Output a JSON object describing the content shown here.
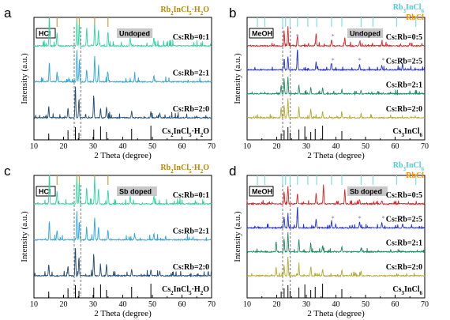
{
  "chart_data": [
    {
      "panel": "a",
      "type": "line",
      "xlabel": "2 Theta (degree)",
      "ylabel": "Intensity (a.u.)",
      "xlim": [
        10,
        70
      ],
      "xticks": [
        10,
        20,
        30,
        40,
        50,
        60,
        70
      ],
      "grid": false,
      "solvent_tag": "HCl",
      "condition_tag": "Undoped",
      "legend": [
        {
          "label": "Rb2InCl5·H2O",
          "color": "#b8860b"
        }
      ],
      "ref_top": {
        "color": "#c8a040",
        "x": [
          15.2,
          17.8,
          24.5,
          25.3,
          30.5,
          35.0
        ]
      },
      "series": [
        {
          "name": "Cs:Rb=0:1",
          "color": "#2fd5a0",
          "peaks": [
            [
              15.2,
              0.9
            ],
            [
              17.8,
              0.4
            ],
            [
              24.5,
              0.8
            ],
            [
              25.3,
              0.7
            ],
            [
              27.8,
              0.5
            ],
            [
              30.5,
              0.7
            ],
            [
              31.8,
              0.5
            ],
            [
              35.0,
              0.45
            ],
            [
              42.5,
              0.25
            ],
            [
              50.5,
              0.25
            ]
          ]
        },
        {
          "name": "Cs:Rb=2:1",
          "color": "#29a8e0",
          "peaks": [
            [
              15.2,
              0.6
            ],
            [
              17.8,
              0.3
            ],
            [
              24.5,
              1.0
            ],
            [
              25.3,
              0.6
            ],
            [
              27.8,
              0.4
            ],
            [
              30.5,
              0.8
            ],
            [
              31.8,
              0.4
            ],
            [
              35.0,
              0.3
            ],
            [
              44.0,
              0.2
            ],
            [
              50.5,
              0.2
            ]
          ]
        },
        {
          "name": "Cs:Rb=2:0",
          "color": "#1f4a6e",
          "peaks": [
            [
              15.0,
              0.35
            ],
            [
              21.5,
              0.3
            ],
            [
              24.0,
              1.0
            ],
            [
              25.2,
              0.6
            ],
            [
              30.2,
              0.7
            ],
            [
              32.5,
              0.3
            ],
            [
              34.5,
              0.35
            ],
            [
              43.0,
              0.2
            ],
            [
              49.5,
              0.2
            ],
            [
              52.5,
              0.15
            ]
          ]
        }
      ],
      "ref_bottom": {
        "name": "Cs2InCl5·H2O",
        "color": "#000000",
        "x": [
          15.0,
          21.5,
          24.0,
          25.2,
          30.2,
          32.5,
          34.5,
          43.0,
          49.5
        ]
      }
    },
    {
      "panel": "b",
      "type": "line",
      "xlabel": "2 Theta (degree)",
      "ylabel": "Intensity (a.u.)",
      "xlim": [
        10,
        70
      ],
      "xticks": [
        10,
        20,
        30,
        40,
        50,
        60,
        70
      ],
      "grid": false,
      "solvent_tag": "MeOH",
      "condition_tag": "Undoped",
      "legend": [
        {
          "label": "Rb3InCl6",
          "color": "#3fd4d4"
        },
        {
          "label": "RbCl",
          "color": "#ff8c00"
        }
      ],
      "ref_top": {
        "color": "#7fe0e0",
        "x": [
          13.5,
          16.0,
          22.0,
          23.0,
          24.5,
          27.0,
          30.5,
          33.5,
          38.5,
          42.0,
          48.5,
          52.5,
          60.5,
          67.0
        ]
      },
      "series": [
        {
          "name": "Cs:Rb=0:5",
          "color": "#e02020",
          "peaks": [
            [
              22.5,
              0.7
            ],
            [
              23.8,
              0.9
            ],
            [
              27.0,
              0.5
            ],
            [
              33.3,
              0.6
            ],
            [
              38.5,
              0.3
            ],
            [
              43.0,
              0.4
            ],
            [
              48.0,
              0.2
            ],
            [
              55.5,
              0.15
            ],
            [
              65.0,
              0.15
            ]
          ],
          "markers": [
            27.0,
            39.0,
            48.0
          ]
        },
        {
          "name": "Cs:Rb=2:5",
          "color": "#2030d0",
          "peaks": [
            [
              22.5,
              0.5
            ],
            [
              23.8,
              0.6
            ],
            [
              27.0,
              1.0
            ],
            [
              33.3,
              0.4
            ],
            [
              38.5,
              0.3
            ],
            [
              48.0,
              0.25
            ],
            [
              55.5,
              0.2
            ],
            [
              62.5,
              0.3
            ]
          ],
          "markers": [
            27.0,
            39.0,
            48.0,
            56.0,
            62.5
          ]
        },
        {
          "name": "Cs:Rb=2:1",
          "color": "#1e8a60",
          "peaks": [
            [
              21.5,
              0.4
            ],
            [
              22.5,
              0.7
            ],
            [
              23.8,
              0.8
            ],
            [
              27.5,
              0.4
            ],
            [
              31.5,
              0.3
            ],
            [
              35.5,
              0.3
            ],
            [
              42.0,
              0.2
            ],
            [
              48.5,
              0.15
            ]
          ]
        },
        {
          "name": "Cs:Rb=2:0",
          "color": "#b5a830",
          "peaks": [
            [
              21.5,
              0.5
            ],
            [
              22.5,
              0.6
            ],
            [
              23.8,
              0.9
            ],
            [
              27.5,
              0.5
            ],
            [
              31.5,
              0.4
            ],
            [
              35.5,
              0.3
            ],
            [
              42.0,
              0.25
            ],
            [
              48.5,
              0.2
            ]
          ]
        }
      ],
      "ref_bottom": {
        "name": "Cs3InCl6",
        "color": "#000000",
        "x": [
          21.5,
          22.5,
          23.8,
          24.5,
          27.5,
          29.5,
          31.5,
          33.0,
          35.5,
          42.0
        ]
      }
    },
    {
      "panel": "c",
      "type": "line",
      "xlabel": "2 Theta (degree)",
      "ylabel": "Intensity (a.u.)",
      "xlim": [
        10,
        70
      ],
      "xticks": [
        10,
        20,
        30,
        40,
        50,
        60,
        70
      ],
      "grid": false,
      "solvent_tag": "HCl",
      "condition_tag": "Sb doped",
      "legend": [
        {
          "label": "Rb2InCl5·H2O",
          "color": "#b8860b"
        }
      ],
      "ref_top": {
        "color": "#c8a040",
        "x": [
          15.2,
          17.8,
          24.5,
          25.3,
          30.5,
          35.0
        ]
      },
      "series": [
        {
          "name": "Cs:Rb=0:1",
          "color": "#2fd5a0",
          "peaks": [
            [
              15.2,
              0.9
            ],
            [
              17.8,
              0.4
            ],
            [
              24.5,
              0.8
            ],
            [
              25.3,
              0.7
            ],
            [
              27.8,
              0.5
            ],
            [
              30.5,
              0.8
            ],
            [
              31.8,
              0.5
            ],
            [
              35.0,
              0.45
            ],
            [
              42.5,
              0.25
            ],
            [
              50.5,
              0.25
            ]
          ]
        },
        {
          "name": "Cs:Rb=2:1",
          "color": "#29a8e0",
          "peaks": [
            [
              15.2,
              0.6
            ],
            [
              17.8,
              0.3
            ],
            [
              24.5,
              0.9
            ],
            [
              25.3,
              0.6
            ],
            [
              27.8,
              0.4
            ],
            [
              30.5,
              0.7
            ],
            [
              31.8,
              0.4
            ],
            [
              35.0,
              0.3
            ],
            [
              44.0,
              0.2
            ],
            [
              50.5,
              0.2
            ]
          ]
        },
        {
          "name": "Cs:Rb=2:0",
          "color": "#1f4a6e",
          "peaks": [
            [
              15.0,
              0.35
            ],
            [
              21.5,
              0.3
            ],
            [
              24.0,
              0.9
            ],
            [
              25.2,
              0.6
            ],
            [
              30.2,
              0.7
            ],
            [
              32.5,
              0.3
            ],
            [
              34.5,
              0.35
            ],
            [
              43.0,
              0.2
            ],
            [
              49.5,
              0.2
            ],
            [
              52.5,
              0.15
            ]
          ]
        }
      ],
      "ref_bottom": {
        "name": "Cs2InCl5·H2O",
        "color": "#000000",
        "x": [
          15.0,
          21.5,
          24.0,
          25.2,
          30.2,
          32.5,
          34.5,
          43.0,
          49.5
        ]
      }
    },
    {
      "panel": "d",
      "type": "line",
      "xlabel": "2 Theta (degree)",
      "ylabel": "Intensity (a.u.)",
      "xlim": [
        10,
        70
      ],
      "xticks": [
        10,
        20,
        30,
        40,
        50,
        60,
        70
      ],
      "grid": false,
      "solvent_tag": "MeOH",
      "condition_tag": "Sb doped",
      "legend": [
        {
          "label": "Rb3InCl6",
          "color": "#3fd4d4"
        },
        {
          "label": "RbCl",
          "color": "#ff8c00"
        }
      ],
      "ref_top": {
        "color": "#7fe0e0",
        "x": [
          13.5,
          16.0,
          22.0,
          23.0,
          24.5,
          27.0,
          30.5,
          33.5,
          38.5,
          42.0,
          48.5,
          52.5,
          60.5,
          67.0
        ]
      },
      "series": [
        {
          "name": "Cs:Rb=0:5",
          "color": "#e02020",
          "peaks": [
            [
              22.5,
              0.6
            ],
            [
              23.8,
              0.8
            ],
            [
              27.0,
              0.5
            ],
            [
              33.3,
              0.5
            ],
            [
              35.8,
              0.9
            ],
            [
              43.0,
              0.7
            ],
            [
              48.0,
              0.2
            ],
            [
              55.5,
              0.15
            ]
          ]
        },
        {
          "name": "Cs:Rb=2:5",
          "color": "#2030d0",
          "peaks": [
            [
              22.5,
              0.5
            ],
            [
              23.8,
              0.6
            ],
            [
              27.0,
              1.0
            ],
            [
              33.3,
              0.4
            ],
            [
              38.5,
              0.3
            ],
            [
              48.0,
              0.3
            ],
            [
              55.5,
              0.25
            ],
            [
              62.5,
              0.2
            ]
          ],
          "markers": [
            27.0,
            39.0,
            48.0,
            56.0,
            62.5
          ]
        },
        {
          "name": "Cs:Rb=2:1",
          "color": "#1e8a60",
          "peaks": [
            [
              19.8,
              0.5
            ],
            [
              22.5,
              0.6
            ],
            [
              23.8,
              0.9
            ],
            [
              27.5,
              0.6
            ],
            [
              31.5,
              0.4
            ],
            [
              35.5,
              0.3
            ],
            [
              42.0,
              0.25
            ],
            [
              48.5,
              0.2
            ]
          ]
        },
        {
          "name": "Cs:Rb=2:0",
          "color": "#b5a830",
          "peaks": [
            [
              19.8,
              0.4
            ],
            [
              22.5,
              0.5
            ],
            [
              23.8,
              0.9
            ],
            [
              27.5,
              0.5
            ],
            [
              31.5,
              0.4
            ],
            [
              35.5,
              0.3
            ],
            [
              42.0,
              0.25
            ],
            [
              48.5,
              0.2
            ]
          ]
        }
      ],
      "ref_bottom": {
        "name": "Cs3InCl6",
        "color": "#000000",
        "x": [
          21.5,
          22.5,
          23.8,
          24.5,
          27.5,
          29.5,
          31.5,
          33.0,
          35.5,
          42.0
        ]
      }
    }
  ]
}
